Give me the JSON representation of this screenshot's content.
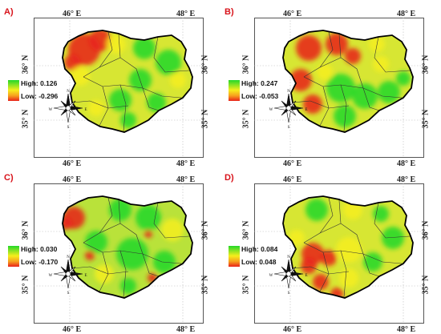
{
  "panels": [
    {
      "label": "A)",
      "legend": {
        "high": "High: 0.126",
        "low": "Low: -0.296"
      }
    },
    {
      "label": "B)",
      "legend": {
        "high": "High: 0.247",
        "low": "Low: -0.053"
      }
    },
    {
      "label": "C)",
      "legend": {
        "high": "High: 0.030",
        "low": "Low: -0.170"
      }
    },
    {
      "label": "D)",
      "legend": {
        "high": "High: 0.084",
        "low": "Low: 0.048"
      }
    }
  ],
  "axes": {
    "lon_ticks": [
      "46° E",
      "48° E"
    ],
    "lat_ticks": [
      "36° N",
      "35° N"
    ]
  },
  "compass": {
    "n": "N",
    "s": "S",
    "e": "E",
    "w": "W"
  },
  "colors": {
    "high": "#22d82a",
    "mid": "#f6ee1c",
    "low": "#e8221a",
    "boundary": "#000000"
  }
}
